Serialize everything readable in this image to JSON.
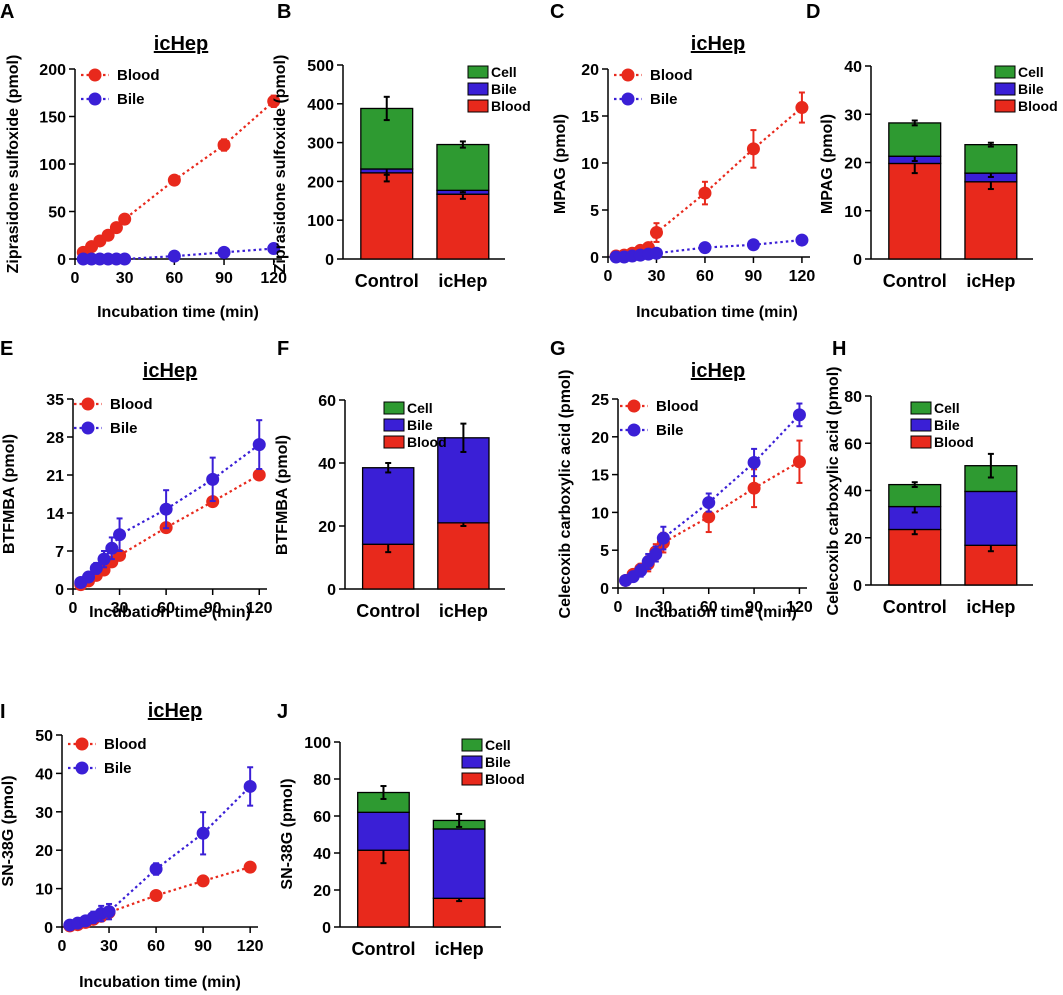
{
  "colors": {
    "blood": "#e8291c",
    "bile": "#3a1fd6",
    "cell": "#2e9a31"
  },
  "chart_data": [
    {
      "panel": "A",
      "type": "line",
      "title": "icHep",
      "xlabel": "Incubation time (min)",
      "ylabel": "Ziprasidone sulfoxide (pmol)",
      "ylim": [
        0,
        200
      ],
      "yticks": [
        0,
        50,
        100,
        150,
        200
      ],
      "xlim": [
        0,
        125
      ],
      "xticks": [
        0,
        30,
        60,
        90,
        120
      ],
      "legend": [
        "Blood",
        "Bile"
      ],
      "series": [
        {
          "name": "Blood",
          "color": "blood",
          "x": [
            5,
            10,
            15,
            20,
            25,
            30,
            60,
            90,
            120
          ],
          "y": [
            7,
            13,
            19,
            25,
            33,
            42,
            83,
            120,
            166
          ],
          "err": [
            0,
            0,
            0,
            0,
            0,
            0,
            0,
            6,
            6
          ]
        },
        {
          "name": "Bile",
          "color": "bile",
          "x": [
            5,
            10,
            15,
            20,
            25,
            30,
            60,
            90,
            120
          ],
          "y": [
            0,
            0,
            0,
            0,
            0,
            0,
            3,
            7,
            11
          ],
          "err": [
            0,
            0,
            0,
            0,
            0,
            0,
            0,
            0,
            0
          ]
        }
      ]
    },
    {
      "panel": "B",
      "type": "bar",
      "stacked": true,
      "ylabel": "Ziprasidone sulfoxide (pmol)",
      "ylim": [
        0,
        500
      ],
      "yticks": [
        0,
        100,
        200,
        300,
        400,
        500
      ],
      "categories": [
        "Control",
        "icHep"
      ],
      "series": [
        {
          "name": "Blood",
          "color": "blood",
          "values": [
            222,
            167
          ],
          "err": [
            22,
            12
          ]
        },
        {
          "name": "Bile",
          "color": "bile",
          "values": [
            10,
            10
          ],
          "err": [
            15,
            5
          ]
        },
        {
          "name": "Cell",
          "color": "cell",
          "values": [
            156,
            118
          ],
          "err": [
            30,
            8
          ]
        }
      ],
      "legend": [
        "Cell",
        "Bile",
        "Blood"
      ]
    },
    {
      "panel": "C",
      "type": "line",
      "title": "icHep",
      "xlabel": "Incubation time (min)",
      "ylabel": "MPAG (pmol)",
      "ylim": [
        0,
        20
      ],
      "yticks": [
        0,
        5,
        10,
        15,
        20
      ],
      "xlim": [
        0,
        125
      ],
      "xticks": [
        0,
        30,
        60,
        90,
        120
      ],
      "legend": [
        "Blood",
        "Bile"
      ],
      "series": [
        {
          "name": "Blood",
          "color": "blood",
          "x": [
            5,
            10,
            15,
            20,
            25,
            30,
            60,
            90,
            120
          ],
          "y": [
            0.1,
            0.2,
            0.4,
            0.7,
            1.0,
            2.6,
            6.8,
            11.5,
            15.9
          ],
          "err": [
            0,
            0,
            0,
            0.3,
            0.5,
            1.0,
            1.2,
            2.0,
            1.6
          ]
        },
        {
          "name": "Bile",
          "color": "bile",
          "x": [
            5,
            10,
            15,
            20,
            25,
            30,
            60,
            90,
            120
          ],
          "y": [
            0,
            0,
            0.1,
            0.2,
            0.3,
            0.4,
            1.0,
            1.3,
            1.8
          ],
          "err": [
            0,
            0,
            0,
            0,
            0,
            0,
            0,
            0,
            0
          ]
        }
      ]
    },
    {
      "panel": "D",
      "type": "bar",
      "stacked": true,
      "ylabel": "MPAG (pmol)",
      "ylim": [
        0,
        40
      ],
      "yticks": [
        0,
        10,
        20,
        30,
        40
      ],
      "categories": [
        "Control",
        "icHep"
      ],
      "series": [
        {
          "name": "Blood",
          "color": "blood",
          "values": [
            19.8,
            16.0
          ],
          "err": [
            2.0,
            1.5
          ]
        },
        {
          "name": "Bile",
          "color": "bile",
          "values": [
            1.5,
            1.8
          ],
          "err": [
            1.0,
            0.8
          ]
        },
        {
          "name": "Cell",
          "color": "cell",
          "values": [
            6.9,
            5.9
          ],
          "err": [
            0.5,
            0.4
          ]
        }
      ],
      "legend": [
        "Cell",
        "Bile",
        "Blood"
      ]
    },
    {
      "panel": "E",
      "type": "line",
      "title": "icHep",
      "xlabel": "Incubation time (min)",
      "ylabel": "BTFMBA (pmol)",
      "ylim": [
        0,
        35
      ],
      "yticks": [
        0,
        7,
        14,
        21,
        28,
        35
      ],
      "xlim": [
        0,
        125
      ],
      "xticks": [
        0,
        30,
        60,
        90,
        120
      ],
      "legend": [
        "Blood",
        "Bile"
      ],
      "series": [
        {
          "name": "Blood",
          "color": "blood",
          "x": [
            5,
            10,
            15,
            20,
            25,
            30,
            60,
            90,
            120
          ],
          "y": [
            0.8,
            1.5,
            2.5,
            3.5,
            5.0,
            6.2,
            11.3,
            16.1,
            21.0
          ],
          "err": [
            0,
            0,
            0,
            0,
            0,
            0,
            0,
            0,
            0
          ]
        },
        {
          "name": "Bile",
          "color": "bile",
          "x": [
            5,
            10,
            15,
            20,
            25,
            30,
            60,
            90,
            120
          ],
          "y": [
            1.2,
            2.2,
            3.8,
            5.5,
            7.5,
            10.0,
            14.7,
            20.2,
            26.6
          ],
          "err": [
            0,
            0,
            1.0,
            1.5,
            2.0,
            3.0,
            3.5,
            4.0,
            4.5
          ]
        }
      ]
    },
    {
      "panel": "F",
      "type": "bar",
      "stacked": true,
      "ylabel": "BTFMBA (pmol)",
      "ylim": [
        0,
        60
      ],
      "yticks": [
        0,
        20,
        40,
        60
      ],
      "categories": [
        "Control",
        "icHep"
      ],
      "series": [
        {
          "name": "Blood",
          "color": "blood",
          "values": [
            14.2,
            21.0
          ],
          "err": [
            2.5,
            1.0
          ]
        },
        {
          "name": "Bile",
          "color": "bile",
          "values": [
            24.3,
            27.0
          ],
          "err": [
            0,
            0
          ]
        },
        {
          "name": "Cell",
          "color": "cell",
          "values": [
            0,
            0
          ],
          "err": [
            1.5,
            4.5
          ]
        }
      ],
      "legend": [
        "Cell",
        "Bile",
        "Blood"
      ]
    },
    {
      "panel": "G",
      "type": "line",
      "title": "icHep",
      "xlabel": "Incubation time (min)",
      "ylabel": "Celecoxib carboxylic acid (pmol)",
      "ylim": [
        0,
        25
      ],
      "yticks": [
        0,
        5,
        10,
        15,
        20,
        25
      ],
      "xlim": [
        0,
        125
      ],
      "xticks": [
        0,
        30,
        60,
        90,
        120
      ],
      "legend": [
        "Blood",
        "Bile"
      ],
      "series": [
        {
          "name": "Blood",
          "color": "blood",
          "x": [
            5,
            10,
            15,
            20,
            25,
            30,
            60,
            90,
            120
          ],
          "y": [
            1.0,
            1.8,
            2.5,
            3.2,
            4.8,
            6.0,
            9.4,
            13.2,
            16.7
          ],
          "err": [
            0,
            0.5,
            0.7,
            1.0,
            1.0,
            1.3,
            2.0,
            2.5,
            2.8
          ]
        },
        {
          "name": "Bile",
          "color": "bile",
          "x": [
            5,
            10,
            15,
            20,
            25,
            30,
            60,
            90,
            120
          ],
          "y": [
            1.0,
            1.5,
            2.3,
            3.5,
            4.5,
            6.6,
            11.3,
            16.6,
            22.9
          ],
          "err": [
            0,
            0.5,
            0.8,
            1.0,
            1.0,
            1.5,
            1.2,
            1.8,
            1.5
          ]
        }
      ]
    },
    {
      "panel": "H",
      "type": "bar",
      "stacked": true,
      "ylabel": "Celecoxib carboxylic acid (pmol)",
      "ylim": [
        0,
        80
      ],
      "yticks": [
        0,
        20,
        40,
        60,
        80
      ],
      "categories": [
        "Control",
        "icHep"
      ],
      "series": [
        {
          "name": "Blood",
          "color": "blood",
          "values": [
            23.5,
            16.8
          ],
          "err": [
            2.0,
            2.5
          ]
        },
        {
          "name": "Bile",
          "color": "bile",
          "values": [
            9.7,
            22.8
          ],
          "err": [
            2.5,
            0
          ]
        },
        {
          "name": "Cell",
          "color": "cell",
          "values": [
            9.3,
            10.9
          ],
          "err": [
            1.0,
            5.0
          ]
        }
      ],
      "legend": [
        "Cell",
        "Bile",
        "Blood"
      ]
    },
    {
      "panel": "I",
      "type": "line",
      "title": "icHep",
      "xlabel": "Incubation time (min)",
      "ylabel": "SN-38G (pmol)",
      "ylim": [
        0,
        50
      ],
      "yticks": [
        0,
        10,
        20,
        30,
        40,
        50
      ],
      "xlim": [
        0,
        125
      ],
      "xticks": [
        0,
        30,
        60,
        90,
        120
      ],
      "legend": [
        "Blood",
        "Bile"
      ],
      "series": [
        {
          "name": "Blood",
          "color": "blood",
          "x": [
            5,
            10,
            15,
            20,
            25,
            30,
            60,
            90,
            120
          ],
          "y": [
            0.3,
            0.6,
            1.2,
            2.0,
            2.8,
            3.8,
            8.2,
            12.0,
            15.6
          ],
          "err": [
            0,
            0,
            0,
            0,
            0,
            0,
            0.5,
            0.8,
            1.0
          ]
        },
        {
          "name": "Bile",
          "color": "bile",
          "x": [
            5,
            10,
            15,
            20,
            25,
            30,
            60,
            90,
            120
          ],
          "y": [
            0.5,
            1.0,
            1.6,
            2.5,
            3.5,
            4.0,
            15.1,
            24.4,
            36.6
          ],
          "err": [
            0,
            0,
            0,
            1.5,
            2.0,
            2.0,
            1.5,
            5.5,
            5.0
          ]
        }
      ]
    },
    {
      "panel": "J",
      "type": "bar",
      "stacked": true,
      "ylabel": "SN-38G (pmol)",
      "ylim": [
        0,
        100
      ],
      "yticks": [
        0,
        20,
        40,
        60,
        80,
        100
      ],
      "categories": [
        "Control",
        "icHep"
      ],
      "series": [
        {
          "name": "Blood",
          "color": "blood",
          "values": [
            41.5,
            15.5
          ],
          "err": [
            7.0,
            1.5
          ]
        },
        {
          "name": "Bile",
          "color": "bile",
          "values": [
            20.5,
            37.5
          ],
          "err": [
            0,
            0
          ]
        },
        {
          "name": "Cell",
          "color": "cell",
          "values": [
            10.7,
            4.6
          ],
          "err": [
            3.5,
            3.5
          ]
        }
      ],
      "legend": [
        "Cell",
        "Bile",
        "Blood"
      ]
    }
  ]
}
